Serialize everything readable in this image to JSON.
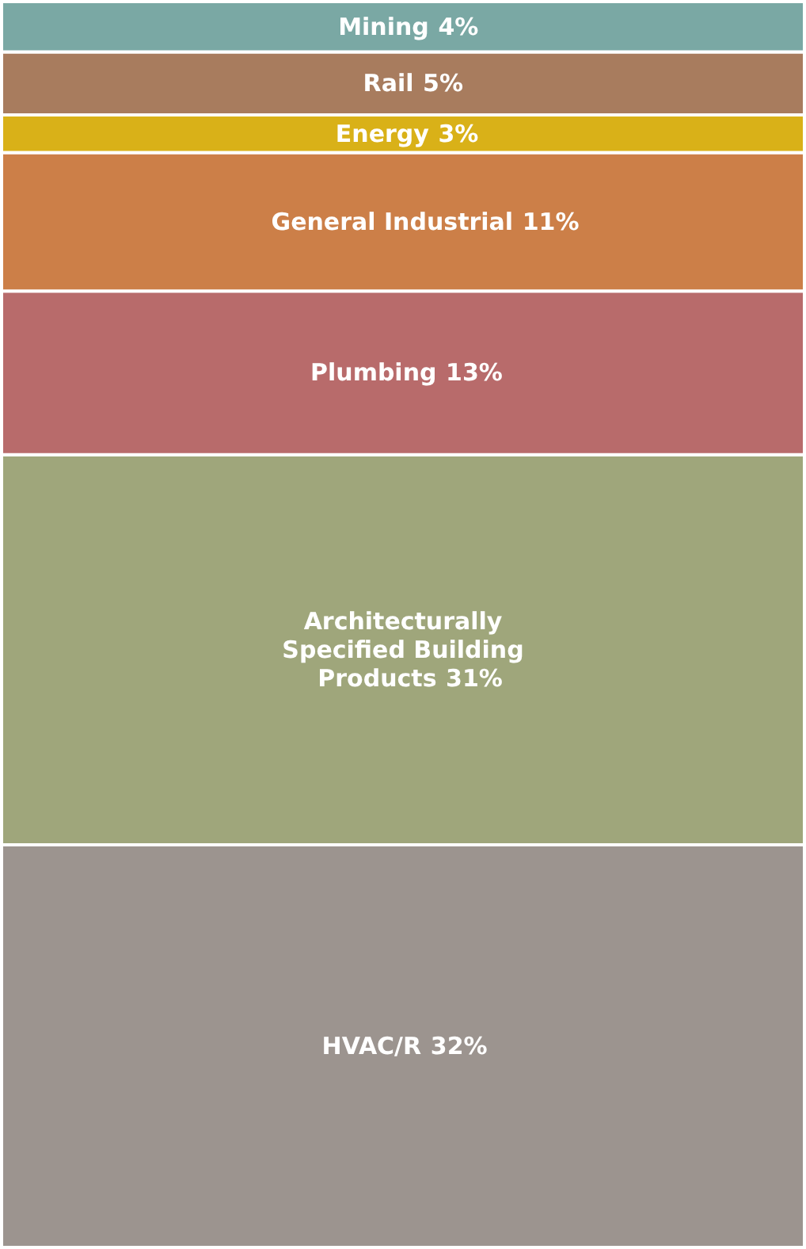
{
  "chart_data": {
    "type": "bar",
    "stacked": true,
    "categories": [
      null
    ],
    "series": [
      {
        "name": "HVAC/R",
        "color": "#9c948f",
        "values": [
          32
        ],
        "value_labels": [
          "32%"
        ]
      },
      {
        "name": "Architecturally Specified Building Products",
        "color": "#9fa67b",
        "values": [
          31
        ],
        "value_labels": [
          "31%"
        ]
      },
      {
        "name": "Plumbing",
        "color": "#b86b6b",
        "values": [
          13
        ],
        "value_labels": [
          "13%"
        ]
      },
      {
        "name": "General Industrial",
        "color": "#cc7f48",
        "values": [
          11
        ],
        "value_labels": [
          "11%"
        ]
      },
      {
        "name": "Energy",
        "color": "#d9b118",
        "values": [
          3
        ],
        "value_labels": [
          "3%"
        ]
      },
      {
        "name": "Rail",
        "color": "#a87c5e",
        "values": [
          5
        ],
        "value_labels": [
          "5%"
        ]
      },
      {
        "name": "Mining",
        "color": "#7aa8a4",
        "values": [
          4
        ],
        "value_labels": [
          "4%"
        ]
      }
    ]
  }
}
